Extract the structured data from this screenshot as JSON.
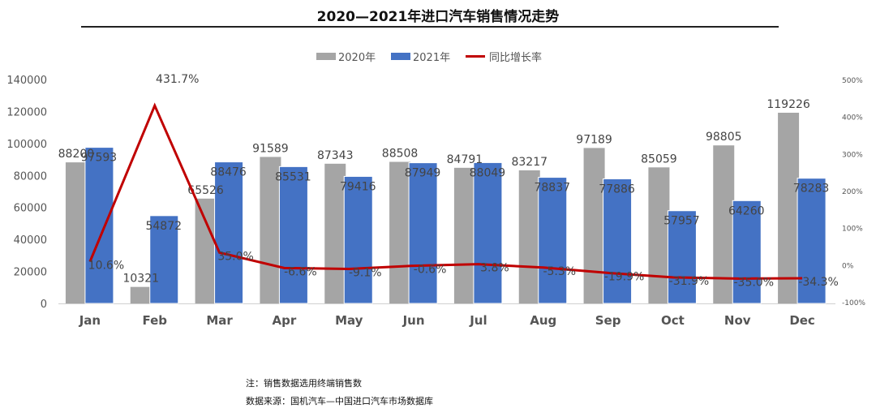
{
  "chart_data": {
    "type": "bar+line",
    "title": "2020—2021年进口汽车销售情况走势",
    "categories": [
      "Jan",
      "Feb",
      "Mar",
      "Apr",
      "May",
      "Jun",
      "Jul",
      "Aug",
      "Sep",
      "Oct",
      "Nov",
      "Dec"
    ],
    "series": [
      {
        "name": "2020年",
        "type": "bar",
        "axis": "left",
        "color": "#A5A5A5",
        "values": [
          88200,
          10321,
          65526,
          91589,
          87343,
          88508,
          84791,
          83217,
          97189,
          85059,
          98805,
          119226
        ]
      },
      {
        "name": "2021年",
        "type": "bar",
        "axis": "left",
        "color": "#4472C4",
        "values": [
          97593,
          54872,
          88476,
          85531,
          79416,
          87949,
          88049,
          78837,
          77886,
          57957,
          64260,
          78283
        ]
      },
      {
        "name": "同比增长率",
        "type": "line",
        "axis": "right",
        "color": "#C00000",
        "values": [
          10.6,
          431.7,
          35.0,
          -6.6,
          -9.1,
          -0.6,
          3.8,
          -5.3,
          -19.9,
          -31.9,
          -35.0,
          -34.3
        ],
        "labels": [
          "10.6%",
          "431.7%",
          "35.0%",
          "-6.6%",
          "-9.1%",
          "-0.6%",
          "3.8%",
          "-5.3%",
          "-19.9%",
          "-31.9%",
          "-35.0%",
          "-34.3%"
        ]
      }
    ],
    "ylim": [
      0,
      140000
    ],
    "yticks": [
      "0",
      "20000",
      "40000",
      "60000",
      "80000",
      "100000",
      "120000",
      "140000"
    ],
    "y2lim": [
      -100,
      500
    ],
    "y2ticks": [
      "-100%",
      "0%",
      "100%",
      "200%",
      "300%",
      "400%",
      "500%"
    ],
    "legend": "top-center",
    "grid": false
  },
  "notes": {
    "line1": "注：销售数据选用终端销售数",
    "line2": "数据来源：国机汽车—中国进口汽车市场数据库"
  }
}
